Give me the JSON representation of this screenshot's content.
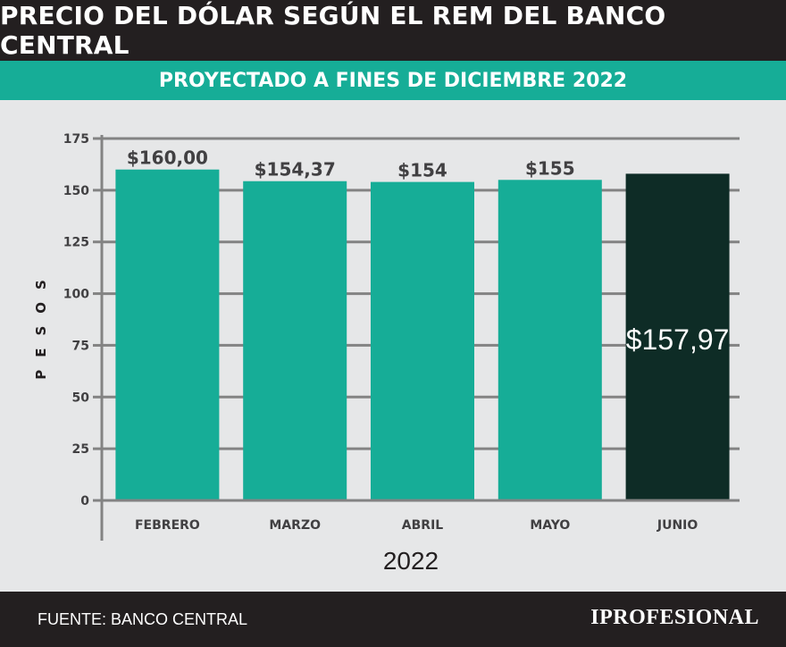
{
  "header": {
    "title": "PRECIO DEL DÓLAR SEGÚN EL REM DEL BANCO CENTRAL",
    "subtitle": "PROYECTADO A FINES DE DICIEMBRE 2022"
  },
  "chart_data": {
    "type": "bar",
    "title": "PRECIO DEL DÓLAR SEGÚN EL REM DEL BANCO CENTRAL",
    "subtitle": "PROYECTADO A FINES DE DICIEMBRE 2022",
    "categories": [
      "FEBRERO",
      "MARZO",
      "ABRIL",
      "MAYO",
      "JUNIO"
    ],
    "values": [
      160.0,
      154.37,
      154,
      155,
      157.97
    ],
    "value_labels": [
      "$160,00",
      "$154,37",
      "$154",
      "$155",
      "$157,97"
    ],
    "xlabel": "2022",
    "ylabel": "PESOS",
    "ylim": [
      0,
      175
    ],
    "yticks": [
      0,
      25,
      50,
      75,
      100,
      125,
      150,
      175
    ],
    "grid": true,
    "bar_colors": [
      "#16ad97",
      "#16ad97",
      "#16ad97",
      "#16ad97",
      "#0e2c26"
    ],
    "label_colors": [
      "#414042",
      "#414042",
      "#414042",
      "#414042",
      "#ffffff"
    ]
  },
  "footer": {
    "source": "FUENTE: BANCO CENTRAL",
    "brand": "IPROFESIONAL"
  }
}
